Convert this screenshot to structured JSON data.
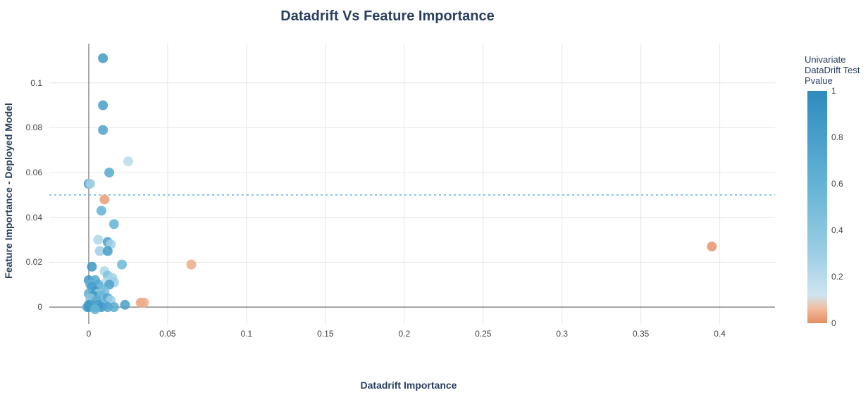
{
  "chart": {
    "type": "scatter",
    "title": "Datadrift Vs Feature Importance",
    "xlabel": "Datadrift Importance",
    "ylabel": "Feature Importance - Deployed Model",
    "title_fontsize": 20,
    "label_fontsize": 14,
    "tick_fontsize": 12,
    "background_color": "#ffffff",
    "grid_color": "#e6e6e6",
    "axis_line_color": "#555555",
    "zero_line_color": "#555555",
    "hline_value": 0.05,
    "hline_color": "#5bb3e6",
    "hline_dash": "3,4",
    "hline_width": 1.5,
    "xlim": [
      -0.025,
      0.435
    ],
    "ylim": [
      -0.0075,
      0.1175
    ],
    "xticks": [
      0,
      0.05,
      0.1,
      0.15,
      0.2,
      0.25,
      0.3,
      0.35,
      0.4
    ],
    "yticks": [
      0,
      0.02,
      0.04,
      0.06,
      0.08,
      0.1
    ],
    "xtick_labels": [
      "0",
      "0.05",
      "0.1",
      "0.15",
      "0.2",
      "0.25",
      "0.3",
      "0.35",
      "0.4"
    ],
    "ytick_labels": [
      "0",
      "0.02",
      "0.04",
      "0.06",
      "0.08",
      "0.1"
    ],
    "marker_radius": 7,
    "marker_opacity": 0.85,
    "colorbar": {
      "title": "Univariate\nDataDrift Test\nPvalue",
      "min": 0,
      "max": 1,
      "ticks": [
        0,
        0.2,
        0.4,
        0.6,
        0.8,
        1
      ],
      "tick_labels": [
        "0",
        "0.2",
        "0.4",
        "0.6",
        "0.8",
        "1"
      ],
      "stops": [
        {
          "t": 0.0,
          "c": "#e58d63"
        },
        {
          "t": 0.06,
          "c": "#f2b99a"
        },
        {
          "t": 0.12,
          "c": "#cfe5f0"
        },
        {
          "t": 0.3,
          "c": "#9ccee4"
        },
        {
          "t": 0.6,
          "c": "#63b3d6"
        },
        {
          "t": 1.0,
          "c": "#2f8bbd"
        }
      ]
    },
    "points": [
      {
        "x": 0.009,
        "y": 0.111,
        "p": 0.85
      },
      {
        "x": 0.009,
        "y": 0.09,
        "p": 0.82
      },
      {
        "x": 0.009,
        "y": 0.079,
        "p": 0.78
      },
      {
        "x": 0.025,
        "y": 0.065,
        "p": 0.2
      },
      {
        "x": 0.013,
        "y": 0.06,
        "p": 0.7
      },
      {
        "x": 0.0,
        "y": 0.055,
        "p": 0.95
      },
      {
        "x": 0.001,
        "y": 0.055,
        "p": 0.25
      },
      {
        "x": 0.01,
        "y": 0.048,
        "p": 0.02
      },
      {
        "x": 0.008,
        "y": 0.043,
        "p": 0.62
      },
      {
        "x": 0.016,
        "y": 0.037,
        "p": 0.6
      },
      {
        "x": 0.006,
        "y": 0.03,
        "p": 0.24
      },
      {
        "x": 0.012,
        "y": 0.029,
        "p": 0.8
      },
      {
        "x": 0.014,
        "y": 0.028,
        "p": 0.28
      },
      {
        "x": 0.395,
        "y": 0.027,
        "p": 0.01
      },
      {
        "x": 0.007,
        "y": 0.025,
        "p": 0.3
      },
      {
        "x": 0.012,
        "y": 0.025,
        "p": 0.85
      },
      {
        "x": 0.065,
        "y": 0.019,
        "p": 0.04
      },
      {
        "x": 0.021,
        "y": 0.019,
        "p": 0.55
      },
      {
        "x": 0.002,
        "y": 0.018,
        "p": 0.9
      },
      {
        "x": 0.01,
        "y": 0.016,
        "p": 0.24
      },
      {
        "x": 0.012,
        "y": 0.014,
        "p": 0.45
      },
      {
        "x": 0.015,
        "y": 0.013,
        "p": 0.26
      },
      {
        "x": 0.0,
        "y": 0.012,
        "p": 0.88
      },
      {
        "x": 0.004,
        "y": 0.012,
        "p": 0.72
      },
      {
        "x": 0.011,
        "y": 0.011,
        "p": 0.2
      },
      {
        "x": 0.016,
        "y": 0.011,
        "p": 0.3
      },
      {
        "x": 0.001,
        "y": 0.01,
        "p": 0.6
      },
      {
        "x": 0.006,
        "y": 0.01,
        "p": 0.7
      },
      {
        "x": 0.013,
        "y": 0.01,
        "p": 0.78
      },
      {
        "x": 0.002,
        "y": 0.009,
        "p": 0.8
      },
      {
        "x": 0.008,
        "y": 0.008,
        "p": 0.52
      },
      {
        "x": 0.004,
        "y": 0.007,
        "p": 0.88
      },
      {
        "x": 0.01,
        "y": 0.007,
        "p": 0.48
      },
      {
        "x": 0.0,
        "y": 0.006,
        "p": 0.65
      },
      {
        "x": 0.006,
        "y": 0.006,
        "p": 0.34
      },
      {
        "x": 0.003,
        "y": 0.005,
        "p": 0.9
      },
      {
        "x": 0.008,
        "y": 0.005,
        "p": 0.58
      },
      {
        "x": 0.012,
        "y": 0.004,
        "p": 0.74
      },
      {
        "x": 0.001,
        "y": 0.004,
        "p": 0.4
      },
      {
        "x": 0.005,
        "y": 0.003,
        "p": 0.66
      },
      {
        "x": 0.014,
        "y": 0.003,
        "p": 0.3
      },
      {
        "x": 0.033,
        "y": 0.002,
        "p": 0.03
      },
      {
        "x": 0.035,
        "y": 0.002,
        "p": 0.04
      },
      {
        "x": 0.0,
        "y": 0.001,
        "p": 0.92
      },
      {
        "x": 0.002,
        "y": 0.001,
        "p": 0.78
      },
      {
        "x": 0.006,
        "y": 0.001,
        "p": 0.85
      },
      {
        "x": 0.01,
        "y": 0.001,
        "p": 0.6
      },
      {
        "x": 0.023,
        "y": 0.001,
        "p": 0.8
      },
      {
        "x": -0.001,
        "y": 0.0,
        "p": 0.7
      },
      {
        "x": 0.0,
        "y": 0.0,
        "p": 0.9
      },
      {
        "x": 0.003,
        "y": 0.0,
        "p": 0.82
      },
      {
        "x": 0.005,
        "y": 0.0,
        "p": 0.7
      },
      {
        "x": 0.008,
        "y": 0.0,
        "p": 0.88
      },
      {
        "x": 0.012,
        "y": 0.0,
        "p": 0.74
      },
      {
        "x": 0.016,
        "y": 0.0,
        "p": 0.68
      },
      {
        "x": 0.004,
        "y": -0.001,
        "p": 0.6
      }
    ]
  }
}
